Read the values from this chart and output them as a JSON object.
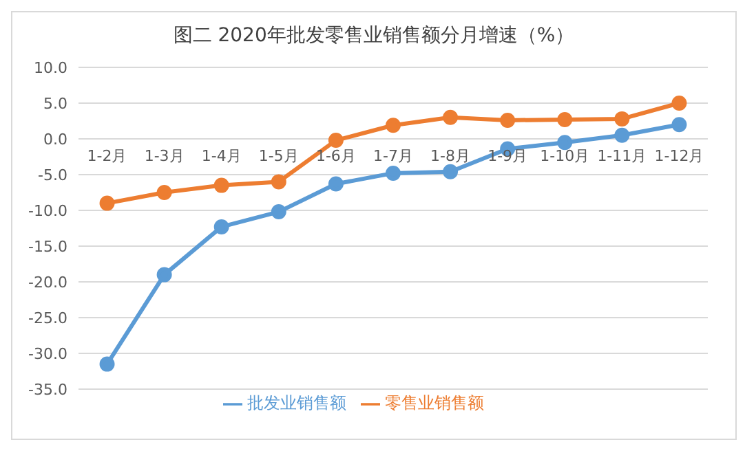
{
  "chart_data": {
    "type": "line",
    "title": "图二 2020年批发零售业销售额分月增速（%）",
    "categories": [
      "1-2月",
      "1-3月",
      "1-4月",
      "1-5月",
      "1-6月",
      "1-7月",
      "1-8月",
      "1-9月",
      "1-10月",
      "1-11月",
      "1-12月"
    ],
    "series": [
      {
        "name": "批发业销售额",
        "color": "#5b9bd5",
        "values": [
          -31.5,
          -19.0,
          -12.3,
          -10.2,
          -6.3,
          -4.8,
          -4.6,
          -1.4,
          -0.5,
          0.5,
          2.0
        ]
      },
      {
        "name": "零售业销售额",
        "color": "#ed7d31",
        "values": [
          -9.0,
          -7.5,
          -6.5,
          -6.0,
          -0.2,
          1.9,
          3.0,
          2.6,
          2.7,
          2.8,
          5.0
        ]
      }
    ],
    "ylim": [
      -35,
      10
    ],
    "yticks": [
      {
        "value": -35,
        "label": "-35.0"
      },
      {
        "value": -30,
        "label": "-30.0"
      },
      {
        "value": -25,
        "label": "-25.0"
      },
      {
        "value": -20,
        "label": "-20.0"
      },
      {
        "value": -15,
        "label": "-15.0"
      },
      {
        "value": -10,
        "label": "-10.0"
      },
      {
        "value": -5,
        "label": "-5.0"
      },
      {
        "value": 0,
        "label": "0.0"
      },
      {
        "value": 5,
        "label": "5.0"
      },
      {
        "value": 10,
        "label": "10.0"
      }
    ],
    "grid": "y",
    "legend": "bottom",
    "marker": "circle",
    "line_style": "solid"
  }
}
